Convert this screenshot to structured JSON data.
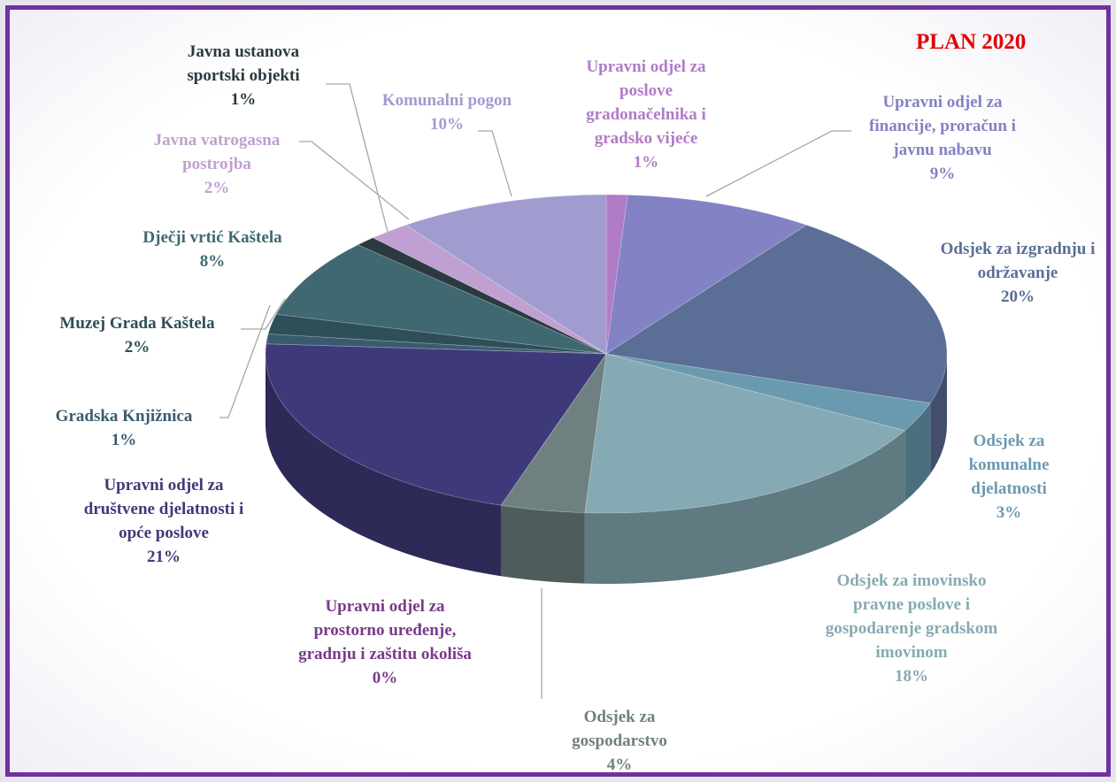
{
  "chart_data": {
    "type": "pie",
    "title": "PLAN 2020",
    "categories": [
      "Upravni odjel za poslove gradonačelnika i gradsko vijeće",
      "Upravni odjel za financije, proračun i javnu nabavu",
      "Odsjek za izgradnju i održavanje",
      "Odsjek za komunalne djelatnosti",
      "Odsjek za imovinsko pravne poslove i gospodarenje gradskom imovinom",
      "Odsjek za gospodarstvo",
      "Upravni odjel za prostorno uređenje, gradnju i zaštitu okoliša",
      "Upravni odjel za društvene djelatnosti i opće poslove",
      "Gradska Knjižnica",
      "Muzej Grada Kaštela",
      "Dječji vrtić Kaštela",
      "Javna ustanova sportski objekti",
      "Javna vatrogasna postrojba",
      "Komunalni pogon"
    ],
    "values": [
      1,
      9,
      20,
      3,
      18,
      4,
      0,
      21,
      1,
      2,
      8,
      1,
      2,
      10
    ],
    "value_labels": [
      "1%",
      "9%",
      "20%",
      "3%",
      "18%",
      "4%",
      "0%",
      "21%",
      "1%",
      "2%",
      "8%",
      "1%",
      "2%",
      "10%"
    ],
    "colors": [
      "#b07cc6",
      "#8282c4",
      "#5a6e96",
      "#6a9ab0",
      "#86aab4",
      "#6e8080",
      "#7a3a8a",
      "#3e3a7a",
      "#3a5a70",
      "#2e4e58",
      "#3f6870",
      "#2a3a40",
      "#c0a0d0",
      "#a09cd0"
    ]
  }
}
